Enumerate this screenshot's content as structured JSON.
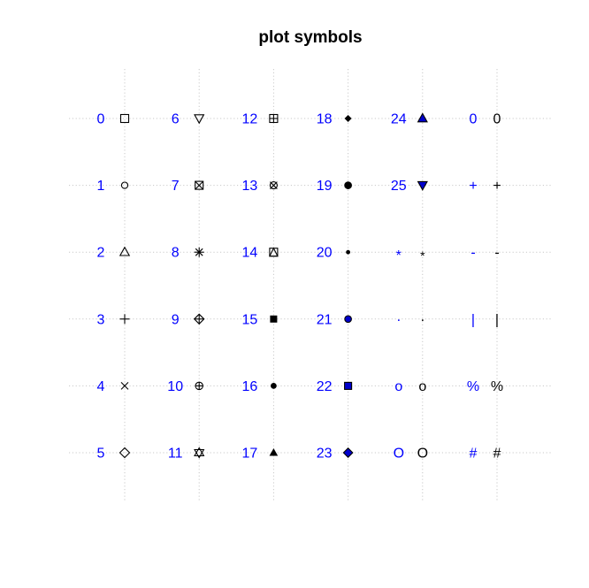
{
  "chart_data": {
    "type": "scatter",
    "title": "plot symbols",
    "label_color": "#0000ff",
    "symbol_color": "#000000",
    "fill_color": "#0000cc",
    "columns": 6,
    "rows": 6,
    "grid": true,
    "points": [
      {
        "label": "0",
        "pch": 0,
        "col": 0,
        "row": 0
      },
      {
        "label": "1",
        "pch": 1,
        "col": 0,
        "row": 1
      },
      {
        "label": "2",
        "pch": 2,
        "col": 0,
        "row": 2
      },
      {
        "label": "3",
        "pch": 3,
        "col": 0,
        "row": 3
      },
      {
        "label": "4",
        "pch": 4,
        "col": 0,
        "row": 4
      },
      {
        "label": "5",
        "pch": 5,
        "col": 0,
        "row": 5
      },
      {
        "label": "6",
        "pch": 6,
        "col": 1,
        "row": 0
      },
      {
        "label": "7",
        "pch": 7,
        "col": 1,
        "row": 1
      },
      {
        "label": "8",
        "pch": 8,
        "col": 1,
        "row": 2
      },
      {
        "label": "9",
        "pch": 9,
        "col": 1,
        "row": 3
      },
      {
        "label": "10",
        "pch": 10,
        "col": 1,
        "row": 4
      },
      {
        "label": "11",
        "pch": 11,
        "col": 1,
        "row": 5
      },
      {
        "label": "12",
        "pch": 12,
        "col": 2,
        "row": 0
      },
      {
        "label": "13",
        "pch": 13,
        "col": 2,
        "row": 1
      },
      {
        "label": "14",
        "pch": 14,
        "col": 2,
        "row": 2
      },
      {
        "label": "15",
        "pch": 15,
        "col": 2,
        "row": 3
      },
      {
        "label": "16",
        "pch": 16,
        "col": 2,
        "row": 4
      },
      {
        "label": "17",
        "pch": 17,
        "col": 2,
        "row": 5
      },
      {
        "label": "18",
        "pch": 18,
        "col": 3,
        "row": 0
      },
      {
        "label": "19",
        "pch": 19,
        "col": 3,
        "row": 1
      },
      {
        "label": "20",
        "pch": 20,
        "col": 3,
        "row": 2
      },
      {
        "label": "21",
        "pch": 21,
        "col": 3,
        "row": 3
      },
      {
        "label": "22",
        "pch": 22,
        "col": 3,
        "row": 4
      },
      {
        "label": "23",
        "pch": 23,
        "col": 3,
        "row": 5
      },
      {
        "label": "24",
        "pch": 24,
        "col": 4,
        "row": 0
      },
      {
        "label": "25",
        "pch": 25,
        "col": 4,
        "row": 1
      },
      {
        "label": "*",
        "pch": "*",
        "col": 4,
        "row": 2
      },
      {
        "label": ".",
        "pch": ".",
        "col": 4,
        "row": 3
      },
      {
        "label": "o",
        "pch": "o",
        "col": 4,
        "row": 4
      },
      {
        "label": "O",
        "pch": "O",
        "col": 4,
        "row": 5
      },
      {
        "label": "0",
        "pch": "0",
        "col": 5,
        "row": 0
      },
      {
        "label": "+",
        "pch": "+",
        "col": 5,
        "row": 1
      },
      {
        "label": "-",
        "pch": "-",
        "col": 5,
        "row": 2
      },
      {
        "label": "|",
        "pch": "|",
        "col": 5,
        "row": 3
      },
      {
        "label": "%",
        "pch": "%",
        "col": 5,
        "row": 4
      },
      {
        "label": "#",
        "pch": "#",
        "col": 5,
        "row": 5
      }
    ]
  }
}
